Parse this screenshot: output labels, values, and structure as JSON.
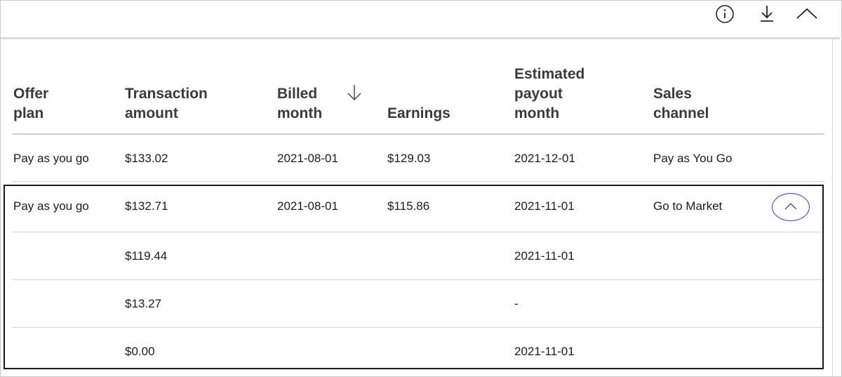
{
  "toolbar": {
    "icons": [
      "info-icon",
      "download-icon",
      "collapse-chevron-up-icon"
    ]
  },
  "table": {
    "headers": {
      "offer_plan": "Offer\nplan",
      "transaction_amount": "Transaction\namount",
      "billed_month": "Billed\nmonth",
      "earnings": "Earnings",
      "estimated_payout_month": "Estimated\npayout\nmonth",
      "sales_channel": "Sales\nchannel"
    },
    "sort_indicator": "arrow-down-icon",
    "rows": [
      {
        "offer_plan": "Pay as you go",
        "transaction_amount": "$133.02",
        "billed_month": "2021-08-01",
        "earnings": "$129.03",
        "estimated_payout_month": "2021-12-01",
        "sales_channel": "Pay as You Go"
      },
      {
        "offer_plan": "Pay as you go",
        "transaction_amount": "$132.71",
        "billed_month": "2021-08-01",
        "earnings": "$115.86",
        "estimated_payout_month": "2021-11-01",
        "sales_channel": "Go to Market"
      }
    ],
    "sub_rows": [
      {
        "transaction_amount": "$119.44",
        "estimated_payout_month": "2021-11-01"
      },
      {
        "transaction_amount": "$13.27",
        "estimated_payout_month": "-"
      },
      {
        "transaction_amount": "$0.00",
        "estimated_payout_month": "2021-11-01"
      }
    ]
  },
  "colors": {
    "accent_outline": "#3b3bd1",
    "group_border": "#1a1a1a",
    "header_text": "#3a3a3a"
  }
}
